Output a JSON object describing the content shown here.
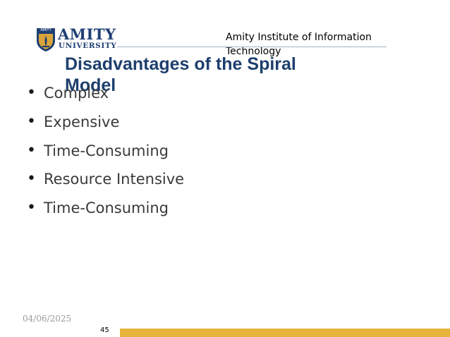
{
  "logo": {
    "shield_text": "AMITY",
    "wordmark": "AMITY",
    "sub": "UNIVERSITY",
    "colors": {
      "navy": "#1e3f74",
      "gold": "#d9a53a"
    }
  },
  "header": {
    "institute": "Amity Institute of Information Technology"
  },
  "slide": {
    "title": "Disadvantages of the Spiral Model",
    "bullets": [
      "Complex",
      "Expensive",
      "Time-Consuming",
      "Resource Intensive",
      "Time-Consuming"
    ]
  },
  "footer": {
    "date": "04/06/2025",
    "page_number": "45",
    "bar_color": "#e8b33c"
  }
}
